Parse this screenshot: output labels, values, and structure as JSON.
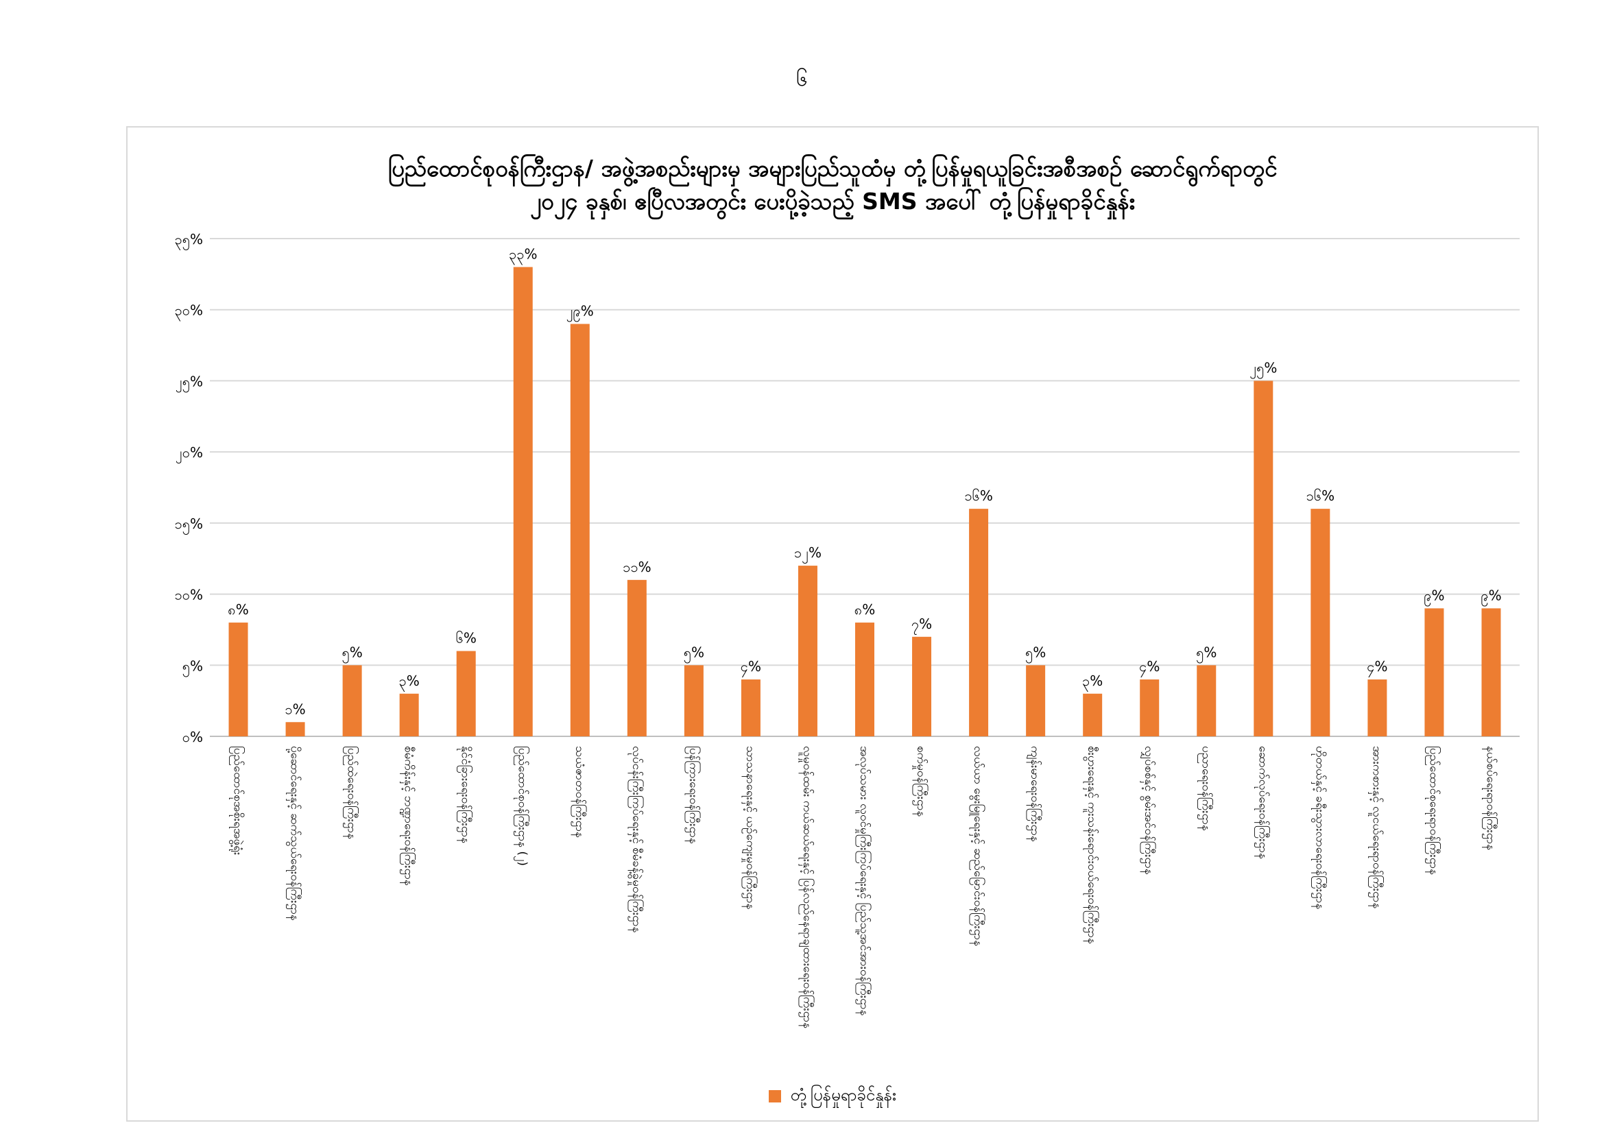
{
  "page": {
    "page_number": "၆"
  },
  "chart_data": {
    "type": "bar",
    "title_line1": "ပြည်ထောင်စုဝန်ကြီးဌာန/ အဖွဲ့အစည်းများမှ အများပြည်သူထံမှ တုံ့ပြန်မှုရယူခြင်းအစီအစဉ် ဆောင်ရွက်ရာတွင်",
    "title_line2": "၂၀၂၄ ခုနှစ်၊ ဧပြီလအတွင်း ပေးပို့ခဲ့သည့် SMS အပေါ် တုံ့ပြန်မှုရာခိုင်နှုန်း",
    "series_name": "တုံ့ပြန်မှုရာခိုင်နှုန်း",
    "color": "#ED7D31",
    "ylim": [
      0,
      35
    ],
    "yticks": [
      {
        "value": 0,
        "label": "၀%"
      },
      {
        "value": 5,
        "label": "၅%"
      },
      {
        "value": 10,
        "label": "၁၀%"
      },
      {
        "value": 15,
        "label": "၁၅%"
      },
      {
        "value": 20,
        "label": "၂၀%"
      },
      {
        "value": 25,
        "label": "၂၅%"
      },
      {
        "value": 30,
        "label": "၃၀%"
      },
      {
        "value": 35,
        "label": "၃၅%"
      }
    ],
    "grid": true,
    "legend_position": "bottom",
    "categories": [
      "ပြည်ထောင်စုအစိုးရအဖွဲ့ရုံး",
      "ပို့ဆောင်ရေးနှင့် ဆက်သွယ်ရေးဝန်ကြီးဌာန",
      "ပြည်ထဲရေးဝန်ကြီးဌာန",
      "စီမံကိန်းနှင့် ဘဏ္ဍာရေးဝန်ကြီးဌာန",
      "နိုင်ငံခြားရေးဝန်ကြီးဌာန",
      "ပြည်ထောင်စုဝန်ကြီးဌာန (၂)",
      "သယံဇာတဝန်ကြီးဌာန",
      "လုပ်ငန်းကြီးကြပ်ရေးနှင့် စီမံခန့်ခွဲမှုဝန်ကြီးဌာန",
      "ပြန်ကြားရေးဝန်ကြီးဌာန",
      "သာသနာရေးနှင့် ယဉ်ကျေးမှုဝန်ကြီးဌာန",
      "လူမှုဝန်ထမ်း ကယ်ဆယ်ရေးနှင့် ပြန်လည်နေရာချထားရေးဝန်ကြီးဌာန",
      "အလုပ်သမား လူဝင်မှုကြီးကြပ်ရေးနှင့် ပြည်သူ့အင်အားဝန်ကြီးဌာန",
      "စက်မှုဝန်ကြီးဌာန",
      "လယ်ယာ မွေးမြူရေးနှင့် ဆည်မြောင်းဝန်ကြီးဌာန",
      "ကျန်းမာရေးဝန်ကြီးဌာန",
      "စီးပွားရေးနှင့် ကူးသန်းရောင်းဝယ်ရေးဝန်ကြီးဌာန",
      "လျှပ်စစ်နှင့် စွမ်းအင်ဝန်ကြီးဌာန",
      "ပညာရေးဝန်ကြီးဌာန",
      "ဆောက်လုပ်ရေးဝန်ကြီးဌာန",
      "ဟိုတယ်နှင့် ခရီးသွားလာရေးဝန်ကြီးဌာန",
      "အားကစားနှင့် လူငယ်ရေးရာဝန်ကြီးဌာန",
      "ပြည်ထောင်စုရေးရာဝန်ကြီးဌာန",
      "နယ်စပ်ရေးရာဝန်ကြီးဌာန"
    ],
    "values": [
      8,
      1,
      5,
      3,
      6,
      33,
      29,
      11,
      5,
      4,
      12,
      8,
      7,
      16,
      5,
      3,
      4,
      5,
      25,
      16,
      4,
      9,
      9
    ],
    "value_labels": [
      "၈%",
      "၁%",
      "၅%",
      "၃%",
      "၆%",
      "၃၃%",
      "၂၉%",
      "၁၁%",
      "၅%",
      "၄%",
      "၁၂%",
      "၈%",
      "၇%",
      "၁၆%",
      "၅%",
      "၃%",
      "၄%",
      "၅%",
      "၂၅%",
      "၁၆%",
      "၄%",
      "၉%",
      "၉%"
    ]
  }
}
